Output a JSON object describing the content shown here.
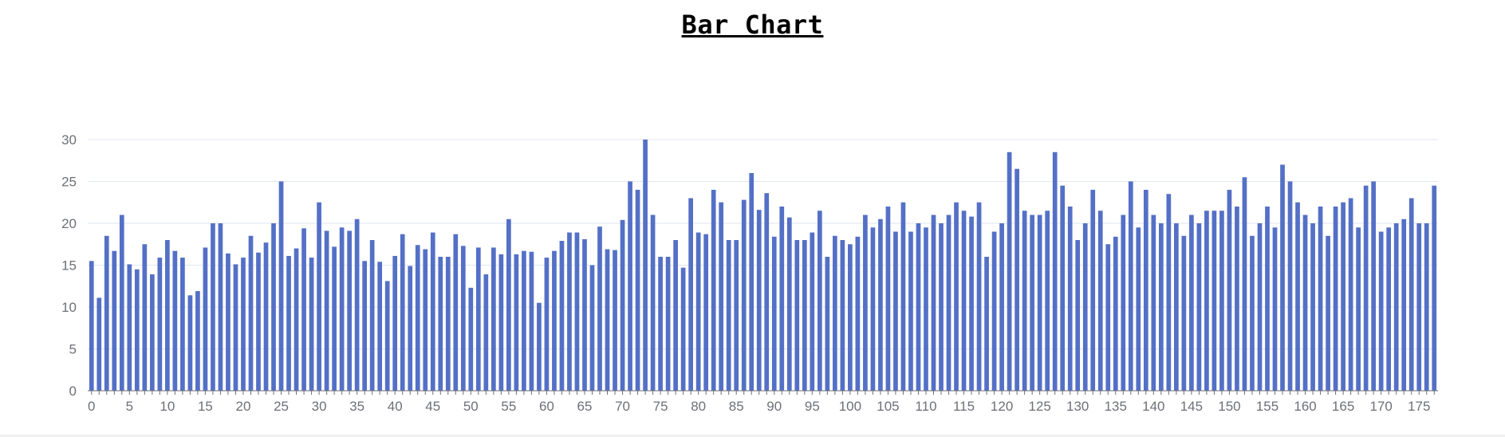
{
  "chart_data": {
    "type": "bar",
    "title": "Bar Chart",
    "xlabel": "",
    "ylabel": "",
    "ylim": [
      0,
      30
    ],
    "yticks": [
      0,
      5,
      10,
      15,
      20,
      25,
      30
    ],
    "xtick_step": 5,
    "grid": true,
    "bar_color": "#5470c6",
    "grid_color": "#e0e6f1",
    "axis_color": "#6e7079",
    "categories": [
      0,
      1,
      2,
      3,
      4,
      5,
      6,
      7,
      8,
      9,
      10,
      11,
      12,
      13,
      14,
      15,
      16,
      17,
      18,
      19,
      20,
      21,
      22,
      23,
      24,
      25,
      26,
      27,
      28,
      29,
      30,
      31,
      32,
      33,
      34,
      35,
      36,
      37,
      38,
      39,
      40,
      41,
      42,
      43,
      44,
      45,
      46,
      47,
      48,
      49,
      50,
      51,
      52,
      53,
      54,
      55,
      56,
      57,
      58,
      59,
      60,
      61,
      62,
      63,
      64,
      65,
      66,
      67,
      68,
      69,
      70,
      71,
      72,
      73,
      74,
      75,
      76,
      77,
      78,
      79,
      80,
      81,
      82,
      83,
      84,
      85,
      86,
      87,
      88,
      89,
      90,
      91,
      92,
      93,
      94,
      95,
      96,
      97,
      98,
      99,
      100,
      101,
      102,
      103,
      104,
      105,
      106,
      107,
      108,
      109,
      110,
      111,
      112,
      113,
      114,
      115,
      116,
      117,
      118,
      119,
      120,
      121,
      122,
      123,
      124,
      125,
      126,
      127,
      128,
      129,
      130,
      131,
      132,
      133,
      134,
      135,
      136,
      137,
      138,
      139,
      140,
      141,
      142,
      143,
      144,
      145,
      146,
      147,
      148,
      149,
      150,
      151,
      152,
      153,
      154,
      155,
      156,
      157,
      158,
      159,
      160,
      161,
      162,
      163,
      164,
      165,
      166,
      167,
      168,
      169,
      170,
      171,
      172,
      173,
      174,
      175,
      176,
      177
    ],
    "values": [
      15.5,
      11.1,
      18.5,
      16.7,
      21,
      15.1,
      14.5,
      17.5,
      13.9,
      15.9,
      18,
      16.7,
      15.9,
      11.4,
      11.9,
      17.1,
      20,
      20,
      16.4,
      15.1,
      15.9,
      18.5,
      16.5,
      17.7,
      20,
      25,
      16.1,
      17,
      19.4,
      15.9,
      22.5,
      19.1,
      17.2,
      19.5,
      19.1,
      20.5,
      15.5,
      18,
      15.4,
      13.1,
      16.1,
      18.7,
      14.9,
      17.4,
      16.9,
      18.9,
      16,
      16,
      18.7,
      17.3,
      12.3,
      17.1,
      13.9,
      17.1,
      16.3,
      20.5,
      16.3,
      16.7,
      16.6,
      10.5,
      15.9,
      16.7,
      17.9,
      18.9,
      18.9,
      18.1,
      15,
      19.6,
      16.9,
      16.8,
      20.4,
      25,
      24,
      30,
      21,
      16,
      16,
      18,
      14.7,
      23,
      18.9,
      18.7,
      24,
      22.5,
      18,
      18,
      22.8,
      26,
      21.6,
      23.6,
      18.4,
      22,
      20.7,
      18,
      18,
      18.9,
      21.5,
      16,
      18.5,
      18,
      17.5,
      18.4,
      21,
      19.5,
      20.5,
      22,
      19,
      22.5,
      19,
      20,
      19.5,
      21,
      20,
      21,
      22.5,
      21.5,
      20.8,
      22.5,
      16,
      19,
      20,
      28.5,
      26.5,
      21.5,
      21,
      21,
      21.5,
      28.5,
      24.5,
      22,
      18,
      20,
      24,
      21.5,
      17.5,
      18.4,
      21,
      25,
      19.5,
      24,
      21,
      20,
      23.5,
      20,
      18.5,
      21,
      20,
      21.5,
      21.5,
      21.5,
      24,
      22,
      25.5,
      18.5,
      20,
      22,
      19.5,
      27,
      25,
      22.5,
      21,
      20,
      22,
      18.5,
      22,
      22.5,
      23,
      19.5,
      24.5,
      25,
      19,
      19.5,
      20,
      20.5,
      23,
      20,
      20,
      24.5
    ]
  }
}
